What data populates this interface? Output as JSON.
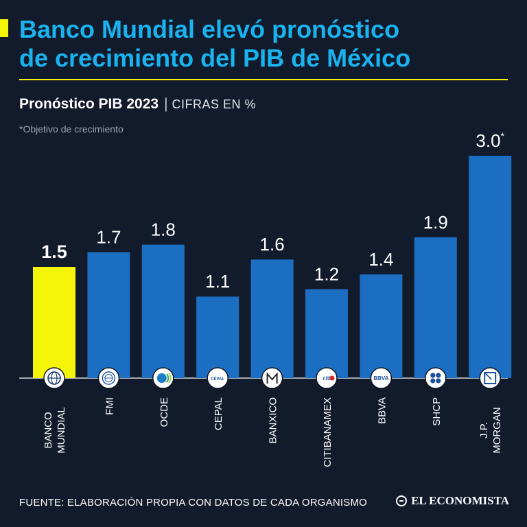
{
  "header": {
    "title_line1": "Banco Mundial elevó pronóstico",
    "title_line2": "de crecimiento del PIB de México",
    "subtitle": "Pronóstico PIB 2023",
    "separator": "|",
    "units": "CIFRAS EN %",
    "note": "*Objetivo de crecimiento"
  },
  "footer": {
    "source": "FUENTE: ELABORACIÓN PROPIA CON DATOS DE CADA ORGANISMO",
    "brand": "EL ECONOMISTA"
  },
  "colors": {
    "background": "#111b2b",
    "title": "#19b3f0",
    "highlight": "#f5f50a",
    "bar": "#1b6ec2",
    "text": "#ffffff"
  },
  "chart_data": {
    "type": "bar",
    "title": "Pronóstico PIB 2023",
    "ylabel": "CIFRAS EN %",
    "ylim": [
      0,
      3.0
    ],
    "categories": [
      "BANCO MUNDIAL",
      "FMI",
      "OCDE",
      "CEPAL",
      "BANXICO",
      "CITIBANAMEX",
      "BBVA",
      "SHCP",
      "J.P. MORGAN"
    ],
    "category_lines": [
      [
        "BANCO",
        "MUNDIAL"
      ],
      [
        "FMI"
      ],
      [
        "OCDE"
      ],
      [
        "CEPAL"
      ],
      [
        "BANXICO"
      ],
      [
        "CITIBANAMEX"
      ],
      [
        "BBVA"
      ],
      [
        "SHCP"
      ],
      [
        "J.P.",
        "MORGAN"
      ]
    ],
    "values": [
      1.5,
      1.7,
      1.8,
      1.1,
      1.6,
      1.2,
      1.4,
      1.9,
      3.0
    ],
    "value_labels": [
      "1.5",
      "1.7",
      "1.8",
      "1.1",
      "1.6",
      "1.2",
      "1.4",
      "1.9",
      "3.0"
    ],
    "value_suffix": [
      "",
      "",
      "",
      "",
      "",
      "",
      "",
      "",
      "*"
    ],
    "highlight": [
      true,
      false,
      false,
      false,
      false,
      false,
      false,
      false,
      false
    ],
    "logo_icons": [
      "world-bank-icon",
      "imf-icon",
      "ocde-icon",
      "cepal-icon",
      "banxico-icon",
      "citi-icon",
      "bbva-icon",
      "shcp-icon",
      "jp-morgan-icon"
    ],
    "logo_texts": [
      "",
      "",
      "",
      "CEPAL",
      "",
      "citi",
      "BBVA",
      "",
      ""
    ],
    "grid": false
  }
}
